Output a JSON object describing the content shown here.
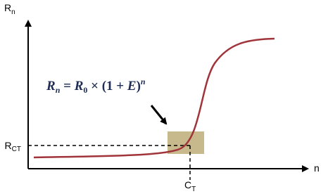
{
  "y_axis_label": {
    "main": "R",
    "sub": "n"
  },
  "x_axis_label": "n",
  "threshold_label": {
    "main": "R",
    "sub": "CT"
  },
  "cycle_label": {
    "main": "C",
    "sub": "T"
  },
  "formula": [
    "R",
    "n",
    " = ",
    "R",
    "0",
    " × (1 + ",
    "E",
    ")",
    "n"
  ]
}
